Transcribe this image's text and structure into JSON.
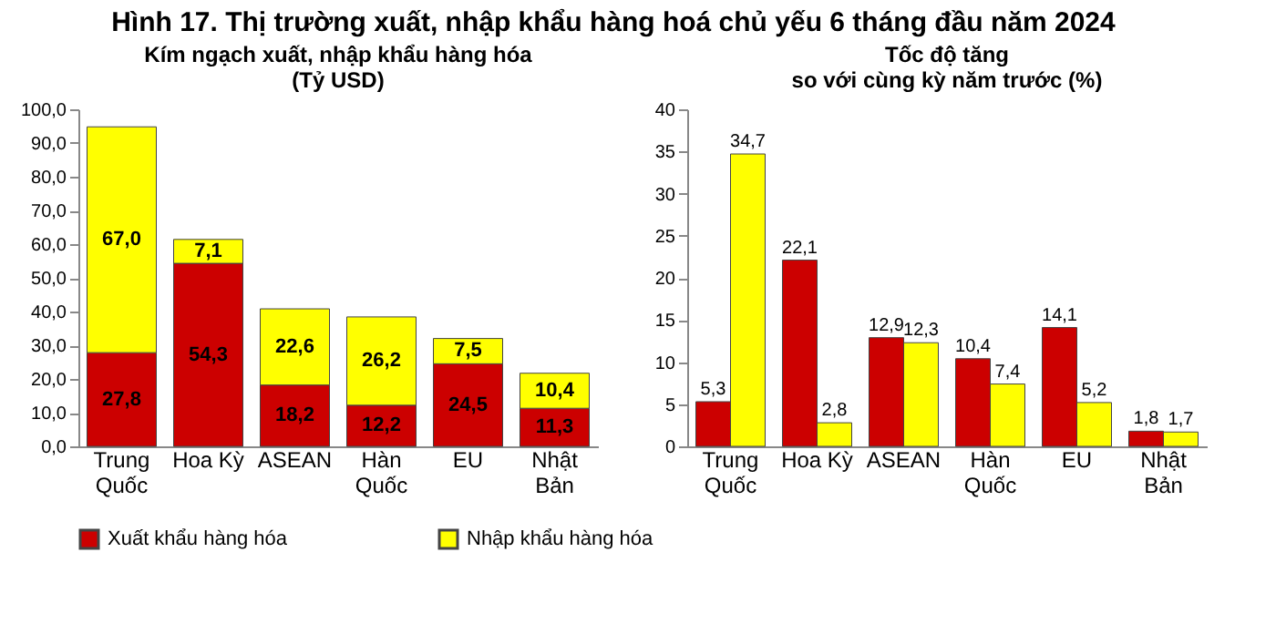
{
  "chart_data": [
    {
      "type": "bar",
      "stacked": true,
      "title": "Kím ngạch xuất, nhập khẩu hàng hóa\n(Tỷ USD)",
      "annotations": [
        "Hình 17. Thị trường xuất, nhập khẩu hàng hoá chủ yếu 6 tháng đầu năm 2024"
      ],
      "categories": [
        "Trung\nQuốc",
        "Hoa Kỳ",
        "ASEAN",
        "Hàn\nQuốc",
        "EU",
        "Nhật\nBản"
      ],
      "series": [
        {
          "name": "Xuất khẩu hàng hóa",
          "color": "#cc0000",
          "values": [
            27.8,
            54.3,
            18.2,
            12.2,
            24.5,
            11.3
          ],
          "value_labels": [
            "27,8",
            "54,3",
            "18,2",
            "12,2",
            "24,5",
            "11,3"
          ]
        },
        {
          "name": "Nhập khẩu hàng hóa",
          "color": "#ffff00",
          "values": [
            67.0,
            7.1,
            22.6,
            26.2,
            7.5,
            10.4
          ],
          "value_labels": [
            "67,0",
            "7,1",
            "22,6",
            "26,2",
            "7,5",
            "10,4"
          ]
        }
      ],
      "ylim": [
        0,
        100
      ],
      "yticks": [
        {
          "value": 0,
          "label": "0,0"
        },
        {
          "value": 10,
          "label": "10,0"
        },
        {
          "value": 20,
          "label": "20,0"
        },
        {
          "value": 30,
          "label": "30,0"
        },
        {
          "value": 40,
          "label": "40,0"
        },
        {
          "value": 50,
          "label": "50,0"
        },
        {
          "value": 60,
          "label": "60,0"
        },
        {
          "value": 70,
          "label": "70,0"
        },
        {
          "value": 80,
          "label": "80,0"
        },
        {
          "value": 90,
          "label": "90,0"
        },
        {
          "value": 100,
          "label": "100,0"
        }
      ],
      "grid": false,
      "legend": "bottom"
    },
    {
      "type": "bar",
      "title": "Tốc độ tăng\nso với cùng kỳ năm trước (%)",
      "categories": [
        "Trung\nQuốc",
        "Hoa Kỳ",
        "ASEAN",
        "Hàn\nQuốc",
        "EU",
        "Nhật\nBản"
      ],
      "series": [
        {
          "name": "Xuất khẩu hàng hóa",
          "color": "#cc0000",
          "values": [
            5.3,
            22.1,
            12.9,
            10.4,
            14.1,
            1.8
          ],
          "value_labels": [
            "5,3",
            "22,1",
            "12,9",
            "10,4",
            "14,1",
            "1,8"
          ]
        },
        {
          "name": "Nhập khẩu hàng hóa",
          "color": "#ffff00",
          "values": [
            34.7,
            2.8,
            12.3,
            7.4,
            5.2,
            1.7
          ],
          "value_labels": [
            "34,7",
            "2,8",
            "12,3",
            "7,4",
            "5,2",
            "1,7"
          ]
        }
      ],
      "ylim": [
        0,
        40
      ],
      "yticks": [
        0,
        5,
        10,
        15,
        20,
        25,
        30,
        35,
        40
      ],
      "grid": false,
      "legend": "bottom"
    }
  ]
}
